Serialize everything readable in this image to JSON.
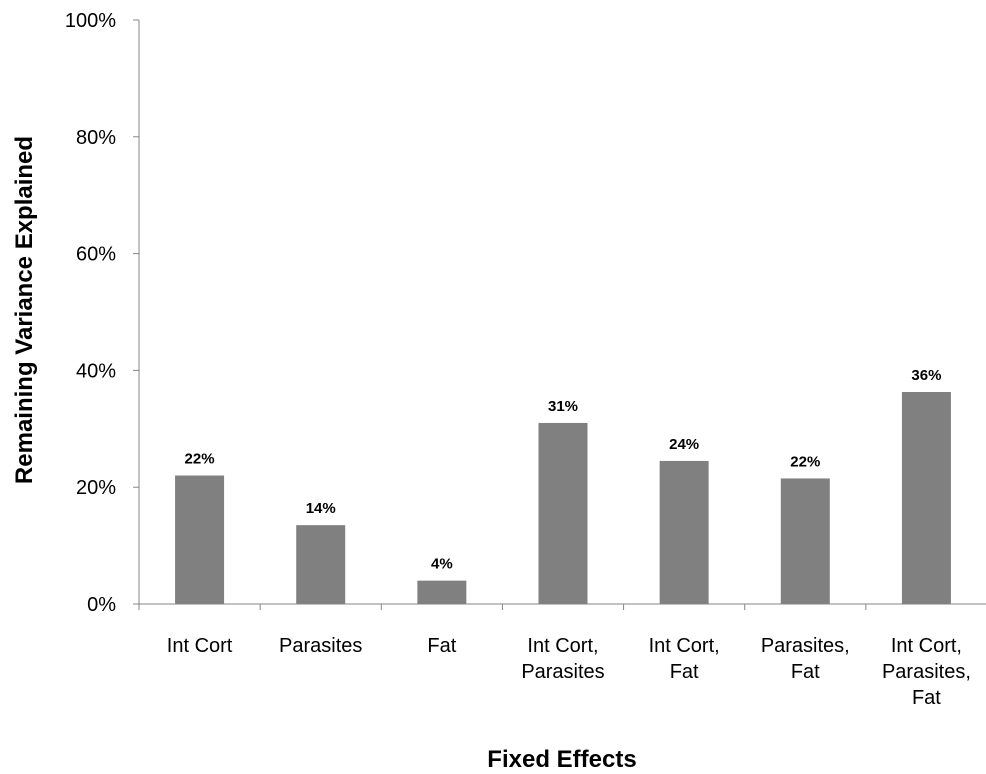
{
  "chart_data": {
    "type": "bar",
    "title": "",
    "xlabel": "Fixed Effects",
    "ylabel": "Remaining Variance Explained",
    "ylim": [
      0,
      100
    ],
    "yticks": [
      "0%",
      "20%",
      "40%",
      "60%",
      "80%",
      "100%"
    ],
    "grid": false,
    "legend": "none",
    "categories": [
      [
        "Int Cort"
      ],
      [
        "Parasites"
      ],
      [
        "Fat"
      ],
      [
        "Int Cort,",
        "Parasites"
      ],
      [
        "Int Cort,",
        "Fat"
      ],
      [
        "Parasites,",
        "Fat"
      ],
      [
        "Int Cort,",
        "Parasites,",
        "Fat"
      ]
    ],
    "values": [
      22,
      13.5,
      4,
      31,
      24.5,
      21.5,
      36.3
    ],
    "data_labels": [
      "22%",
      "14%",
      "4%",
      "31%",
      "24%",
      "22%",
      "36%"
    ],
    "bar_color": "#808080"
  }
}
